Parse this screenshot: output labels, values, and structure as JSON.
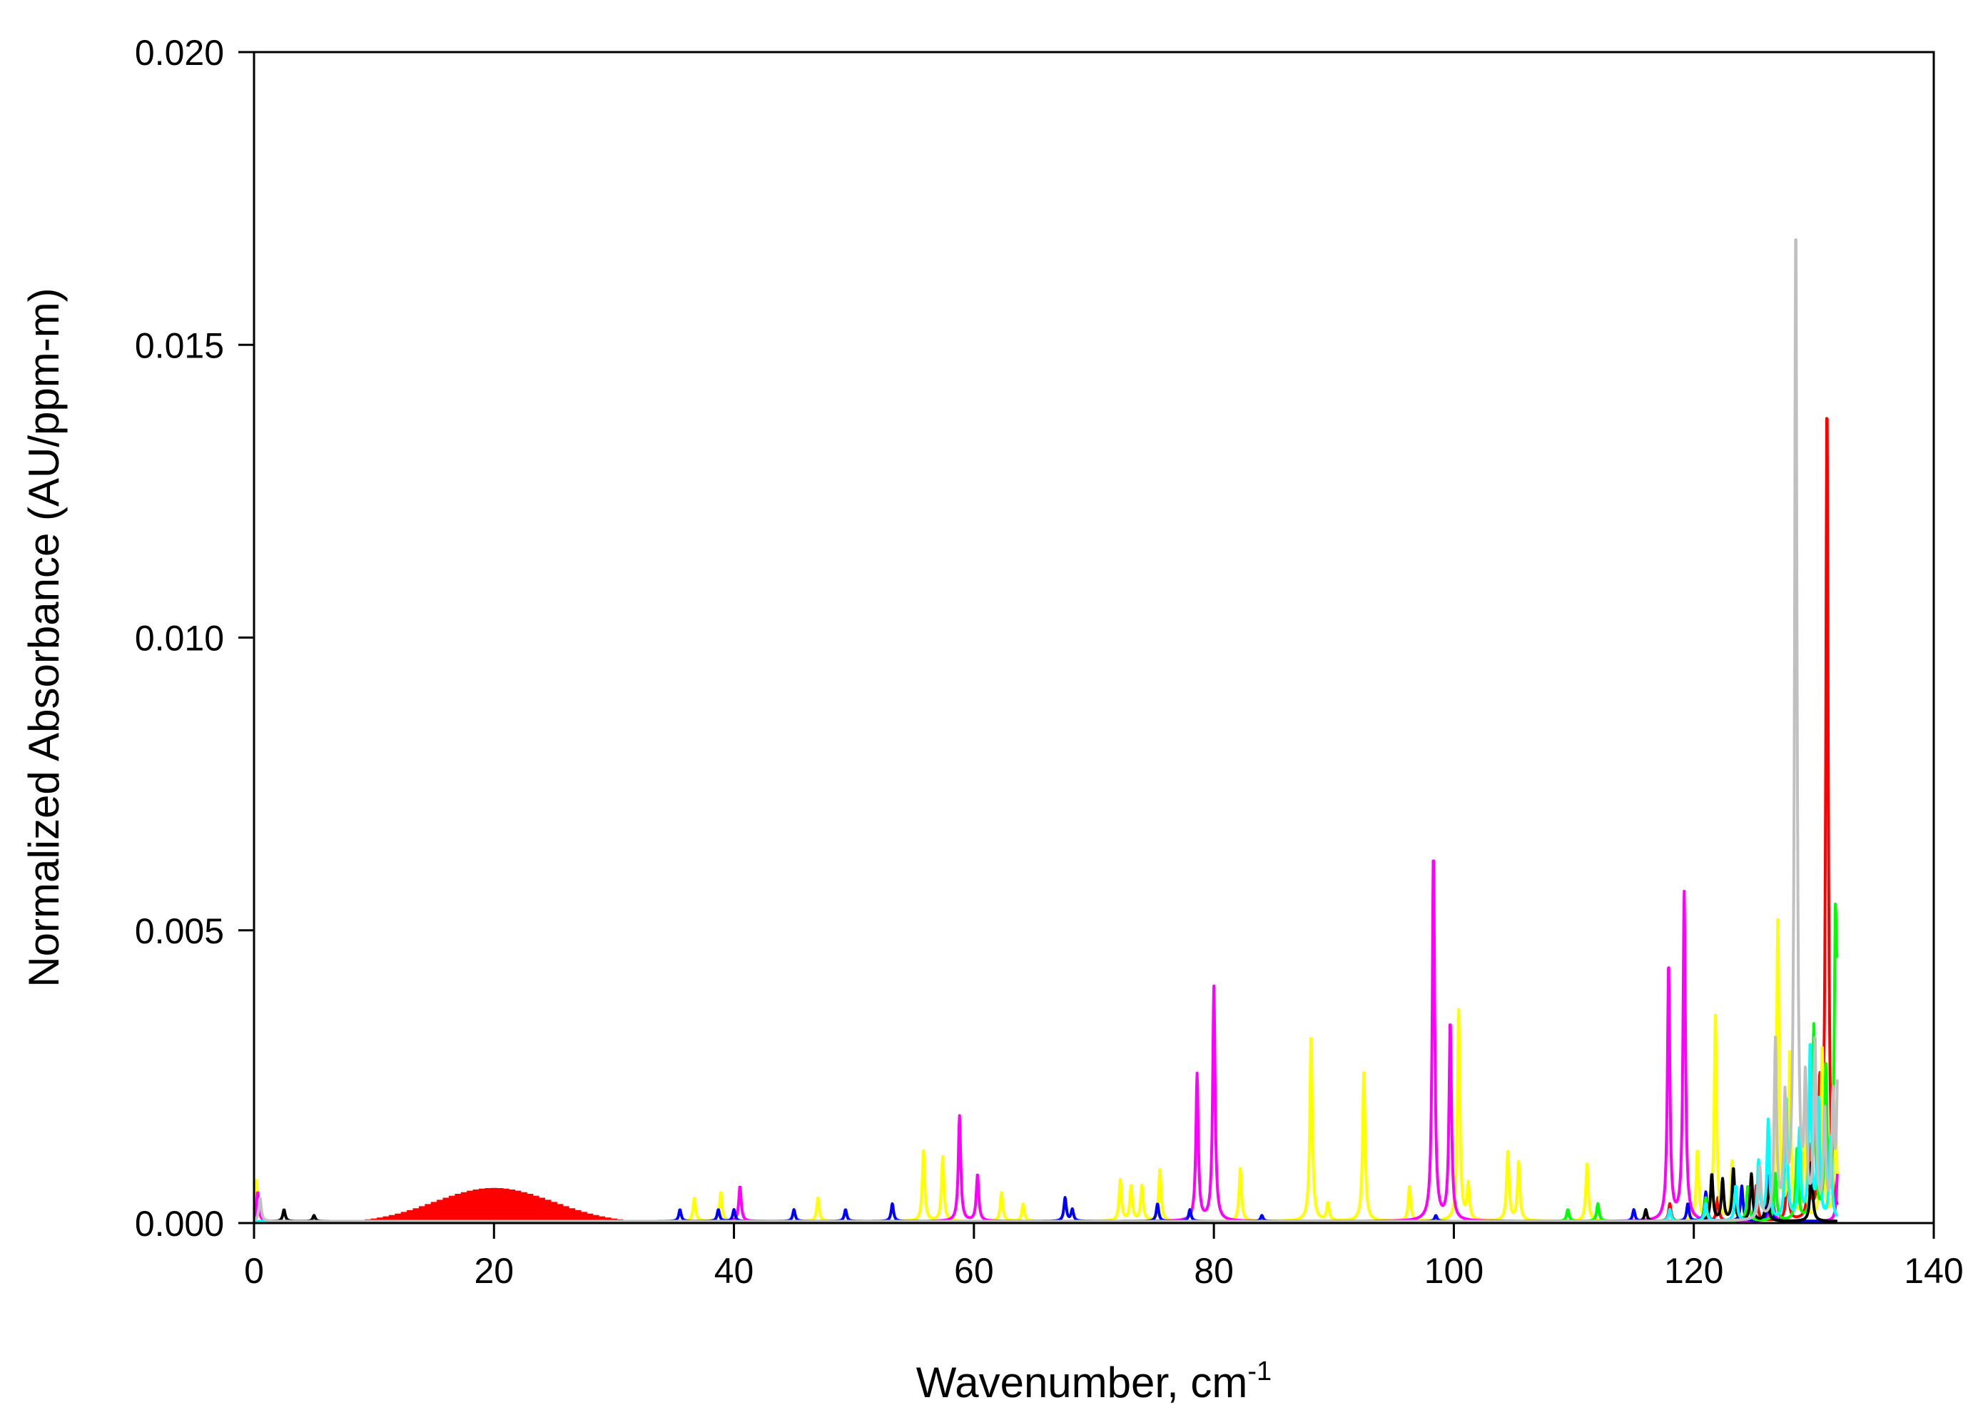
{
  "chart_data": {
    "type": "line",
    "title": "",
    "xlabel": "Wavenumber, cm",
    "xlabel_superscript": "-1",
    "ylabel": "Normalized Absorbance (AU/ppm-m)",
    "xlim": [
      0,
      140
    ],
    "ylim": [
      0,
      0.02
    ],
    "x_ticks": [
      0,
      20,
      40,
      60,
      80,
      100,
      120,
      140
    ],
    "y_ticks": [
      0.0,
      0.005,
      0.01,
      0.015,
      0.02
    ],
    "x_tick_labels": [
      "0",
      "20",
      "40",
      "60",
      "80",
      "100",
      "120",
      "140"
    ],
    "y_tick_labels": [
      "0.000",
      "0.005",
      "0.010",
      "0.015",
      "0.020"
    ],
    "grid": false,
    "legend": "none",
    "series": [
      {
        "color": "#ff0000",
        "broad_band": {
          "center": 20,
          "width": 7,
          "height": 0.0006,
          "from": 8,
          "to": 34,
          "spacing": 0.5
        },
        "peaks": [
          [
            131.1,
            0.014
          ],
          [
            130.5,
            0.002
          ],
          [
            129.6,
            0.0012
          ],
          [
            127.8,
            0.0009
          ],
          [
            125.2,
            0.0006
          ],
          [
            122.0,
            0.0004
          ],
          [
            118.0,
            0.0003
          ]
        ]
      },
      {
        "color": "#ffff00",
        "peaks": [
          [
            0.2,
            0.0007
          ],
          [
            36.7,
            0.0004
          ],
          [
            38.9,
            0.0005
          ],
          [
            47.0,
            0.0004
          ],
          [
            55.8,
            0.0012
          ],
          [
            57.4,
            0.0011
          ],
          [
            62.3,
            0.0005
          ],
          [
            64.1,
            0.0003
          ],
          [
            72.2,
            0.0007
          ],
          [
            73.1,
            0.0006
          ],
          [
            74.0,
            0.0006
          ],
          [
            75.5,
            0.0009
          ],
          [
            82.2,
            0.0009
          ],
          [
            88.1,
            0.0032
          ],
          [
            89.5,
            0.0003
          ],
          [
            92.5,
            0.0026
          ],
          [
            96.3,
            0.0006
          ],
          [
            100.4,
            0.0036
          ],
          [
            101.2,
            0.0006
          ],
          [
            104.5,
            0.0012
          ],
          [
            105.4,
            0.001
          ],
          [
            111.1,
            0.001
          ],
          [
            120.3,
            0.0012
          ],
          [
            121.8,
            0.0035
          ],
          [
            123.2,
            0.001
          ],
          [
            127.0,
            0.0051
          ],
          [
            128.0,
            0.0028
          ],
          [
            129.2,
            0.0018
          ],
          [
            130.7,
            0.003
          ],
          [
            131.8,
            0.002
          ]
        ]
      },
      {
        "color": "#ff00ff",
        "peaks": [
          [
            0.3,
            0.0005
          ],
          [
            40.5,
            0.0006
          ],
          [
            58.8,
            0.0018
          ],
          [
            60.3,
            0.0008
          ],
          [
            78.6,
            0.0025
          ],
          [
            80.0,
            0.004
          ],
          [
            98.3,
            0.0063
          ],
          [
            99.7,
            0.0034
          ],
          [
            117.9,
            0.0044
          ],
          [
            119.2,
            0.0056
          ],
          [
            126.5,
            0.0008
          ],
          [
            132.0,
            0.0009
          ]
        ]
      },
      {
        "color": "#0000ff",
        "peaks": [
          [
            35.5,
            0.0002
          ],
          [
            38.7,
            0.0002
          ],
          [
            40.0,
            0.0002
          ],
          [
            45.0,
            0.0002
          ],
          [
            49.3,
            0.0002
          ],
          [
            53.2,
            0.0003
          ],
          [
            67.6,
            0.0004
          ],
          [
            68.2,
            0.0002
          ],
          [
            75.3,
            0.0003
          ],
          [
            78.0,
            0.0002
          ],
          [
            84.0,
            0.0001
          ],
          [
            98.5,
            0.0001
          ],
          [
            115.0,
            0.0002
          ],
          [
            119.5,
            0.0003
          ],
          [
            121.0,
            0.0005
          ],
          [
            124.0,
            0.0006
          ],
          [
            126.3,
            0.0008
          ]
        ]
      },
      {
        "color": "#00ff00",
        "peaks": [
          [
            109.5,
            0.0002
          ],
          [
            112.0,
            0.0003
          ],
          [
            121.0,
            0.0004
          ],
          [
            124.5,
            0.0006
          ],
          [
            126.8,
            0.0008
          ],
          [
            128.6,
            0.0012
          ],
          [
            130.0,
            0.0033
          ],
          [
            131.0,
            0.0025
          ],
          [
            131.8,
            0.0045
          ],
          [
            132.0,
            0.0032
          ]
        ]
      },
      {
        "color": "#000000",
        "peaks": [
          [
            2.5,
            0.0002
          ],
          [
            5.0,
            0.0001
          ],
          [
            116.0,
            0.0002
          ],
          [
            121.5,
            0.0008
          ],
          [
            122.4,
            0.0007
          ],
          [
            123.3,
            0.0009
          ],
          [
            124.8,
            0.0008
          ],
          [
            126.1,
            0.0006
          ],
          [
            129.8,
            0.001
          ]
        ]
      },
      {
        "color": "#00ffff",
        "peaks": [
          [
            118.0,
            0.0002
          ],
          [
            121.0,
            0.0003
          ],
          [
            123.5,
            0.0006
          ],
          [
            125.4,
            0.001
          ],
          [
            126.2,
            0.0017
          ],
          [
            127.7,
            0.0021
          ],
          [
            128.8,
            0.0015
          ],
          [
            129.7,
            0.003
          ],
          [
            130.4,
            0.002
          ],
          [
            131.4,
            0.0014
          ]
        ]
      },
      {
        "color": "#c0c0c0",
        "peaks": [
          [
            0.5,
            0.0004
          ],
          [
            125.5,
            0.0009
          ],
          [
            126.8,
            0.003
          ],
          [
            127.6,
            0.0019
          ],
          [
            128.5,
            0.0171
          ],
          [
            129.3,
            0.0022
          ],
          [
            130.1,
            0.003
          ],
          [
            130.9,
            0.0018
          ],
          [
            131.6,
            0.002
          ],
          [
            132.0,
            0.0024
          ]
        ]
      }
    ]
  }
}
